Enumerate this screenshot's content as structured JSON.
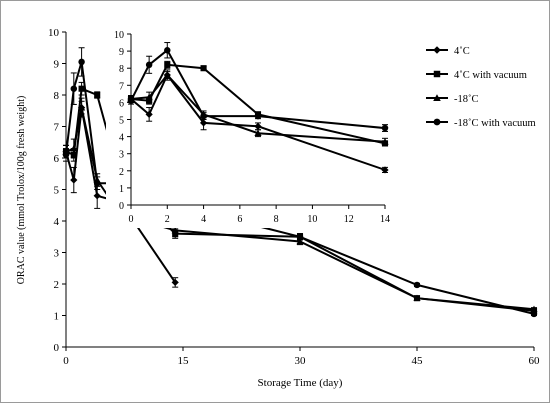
{
  "chart_data": [
    {
      "type": "line",
      "xlabel": "Storage Time (day)",
      "ylabel": "ORAC value (mmol Trolox/100g fresh weight)",
      "xlim": [
        0,
        60
      ],
      "ylim": [
        0,
        10
      ],
      "xticks": [
        0,
        15,
        30,
        45,
        60
      ],
      "yticks": [
        0,
        1,
        2,
        3,
        4,
        5,
        6,
        7,
        8,
        9,
        10
      ],
      "series": [
        {
          "name": "4˚C",
          "marker": "diamond",
          "points": [
            [
              0,
              6.2
            ],
            [
              1,
              5.3
            ],
            [
              2,
              7.6
            ],
            [
              4,
              4.8
            ],
            [
              7,
              4.6
            ],
            [
              14,
              2.05
            ]
          ],
          "errors": [
            0.2,
            0.4,
            0.2,
            0.4,
            0.2,
            0.15
          ]
        },
        {
          "name": "4˚C with vacuum",
          "marker": "square",
          "points": [
            [
              0,
              6.2
            ],
            [
              1,
              6.1
            ],
            [
              2,
              8.2
            ],
            [
              4,
              8.0
            ],
            [
              7,
              5.3
            ],
            [
              14,
              3.6
            ],
            [
              30,
              3.5
            ],
            [
              45,
              1.55
            ],
            [
              60,
              1.15
            ]
          ],
          "errors": [
            0.2,
            0.2,
            0.2,
            0.1,
            0.15,
            0.15,
            0.1,
            0.05,
            0.05
          ]
        },
        {
          "name": "-18˚C",
          "marker": "triangle",
          "points": [
            [
              0,
              6.2
            ],
            [
              1,
              6.3
            ],
            [
              2,
              7.6
            ],
            [
              4,
              5.3
            ],
            [
              7,
              4.2
            ],
            [
              14,
              3.7
            ],
            [
              30,
              3.35
            ],
            [
              45,
              1.55
            ],
            [
              60,
              1.2
            ]
          ],
          "errors": [
            0.2,
            0.3,
            0.3,
            0.2,
            0.2,
            0.2,
            0.1,
            0.05,
            0.05
          ]
        },
        {
          "name": "-18˚C with vacuum",
          "marker": "circle",
          "points": [
            [
              0,
              6.1
            ],
            [
              1,
              8.2
            ],
            [
              2,
              9.05
            ],
            [
              4,
              5.2
            ],
            [
              7,
              5.2
            ],
            [
              14,
              4.5
            ],
            [
              30,
              3.5
            ],
            [
              45,
              1.97
            ],
            [
              60,
              1.05
            ]
          ],
          "errors": [
            0.2,
            0.5,
            0.45,
            0.2,
            0.15,
            0.2,
            0.1,
            0.05,
            0.05
          ]
        }
      ],
      "legend_position": "right",
      "grid": false
    },
    {
      "type": "line",
      "role": "inset",
      "xlim": [
        0,
        14
      ],
      "ylim": [
        0,
        10
      ],
      "xticks": [
        0,
        2,
        4,
        6,
        8,
        10,
        12,
        14
      ],
      "yticks": [
        0,
        1,
        2,
        3,
        4,
        5,
        6,
        7,
        8,
        9,
        10
      ],
      "grid": false
    }
  ],
  "colors": {
    "series": "#000000",
    "axis": "#000000",
    "background": "#ffffff",
    "frame": "#9a9a9a"
  }
}
